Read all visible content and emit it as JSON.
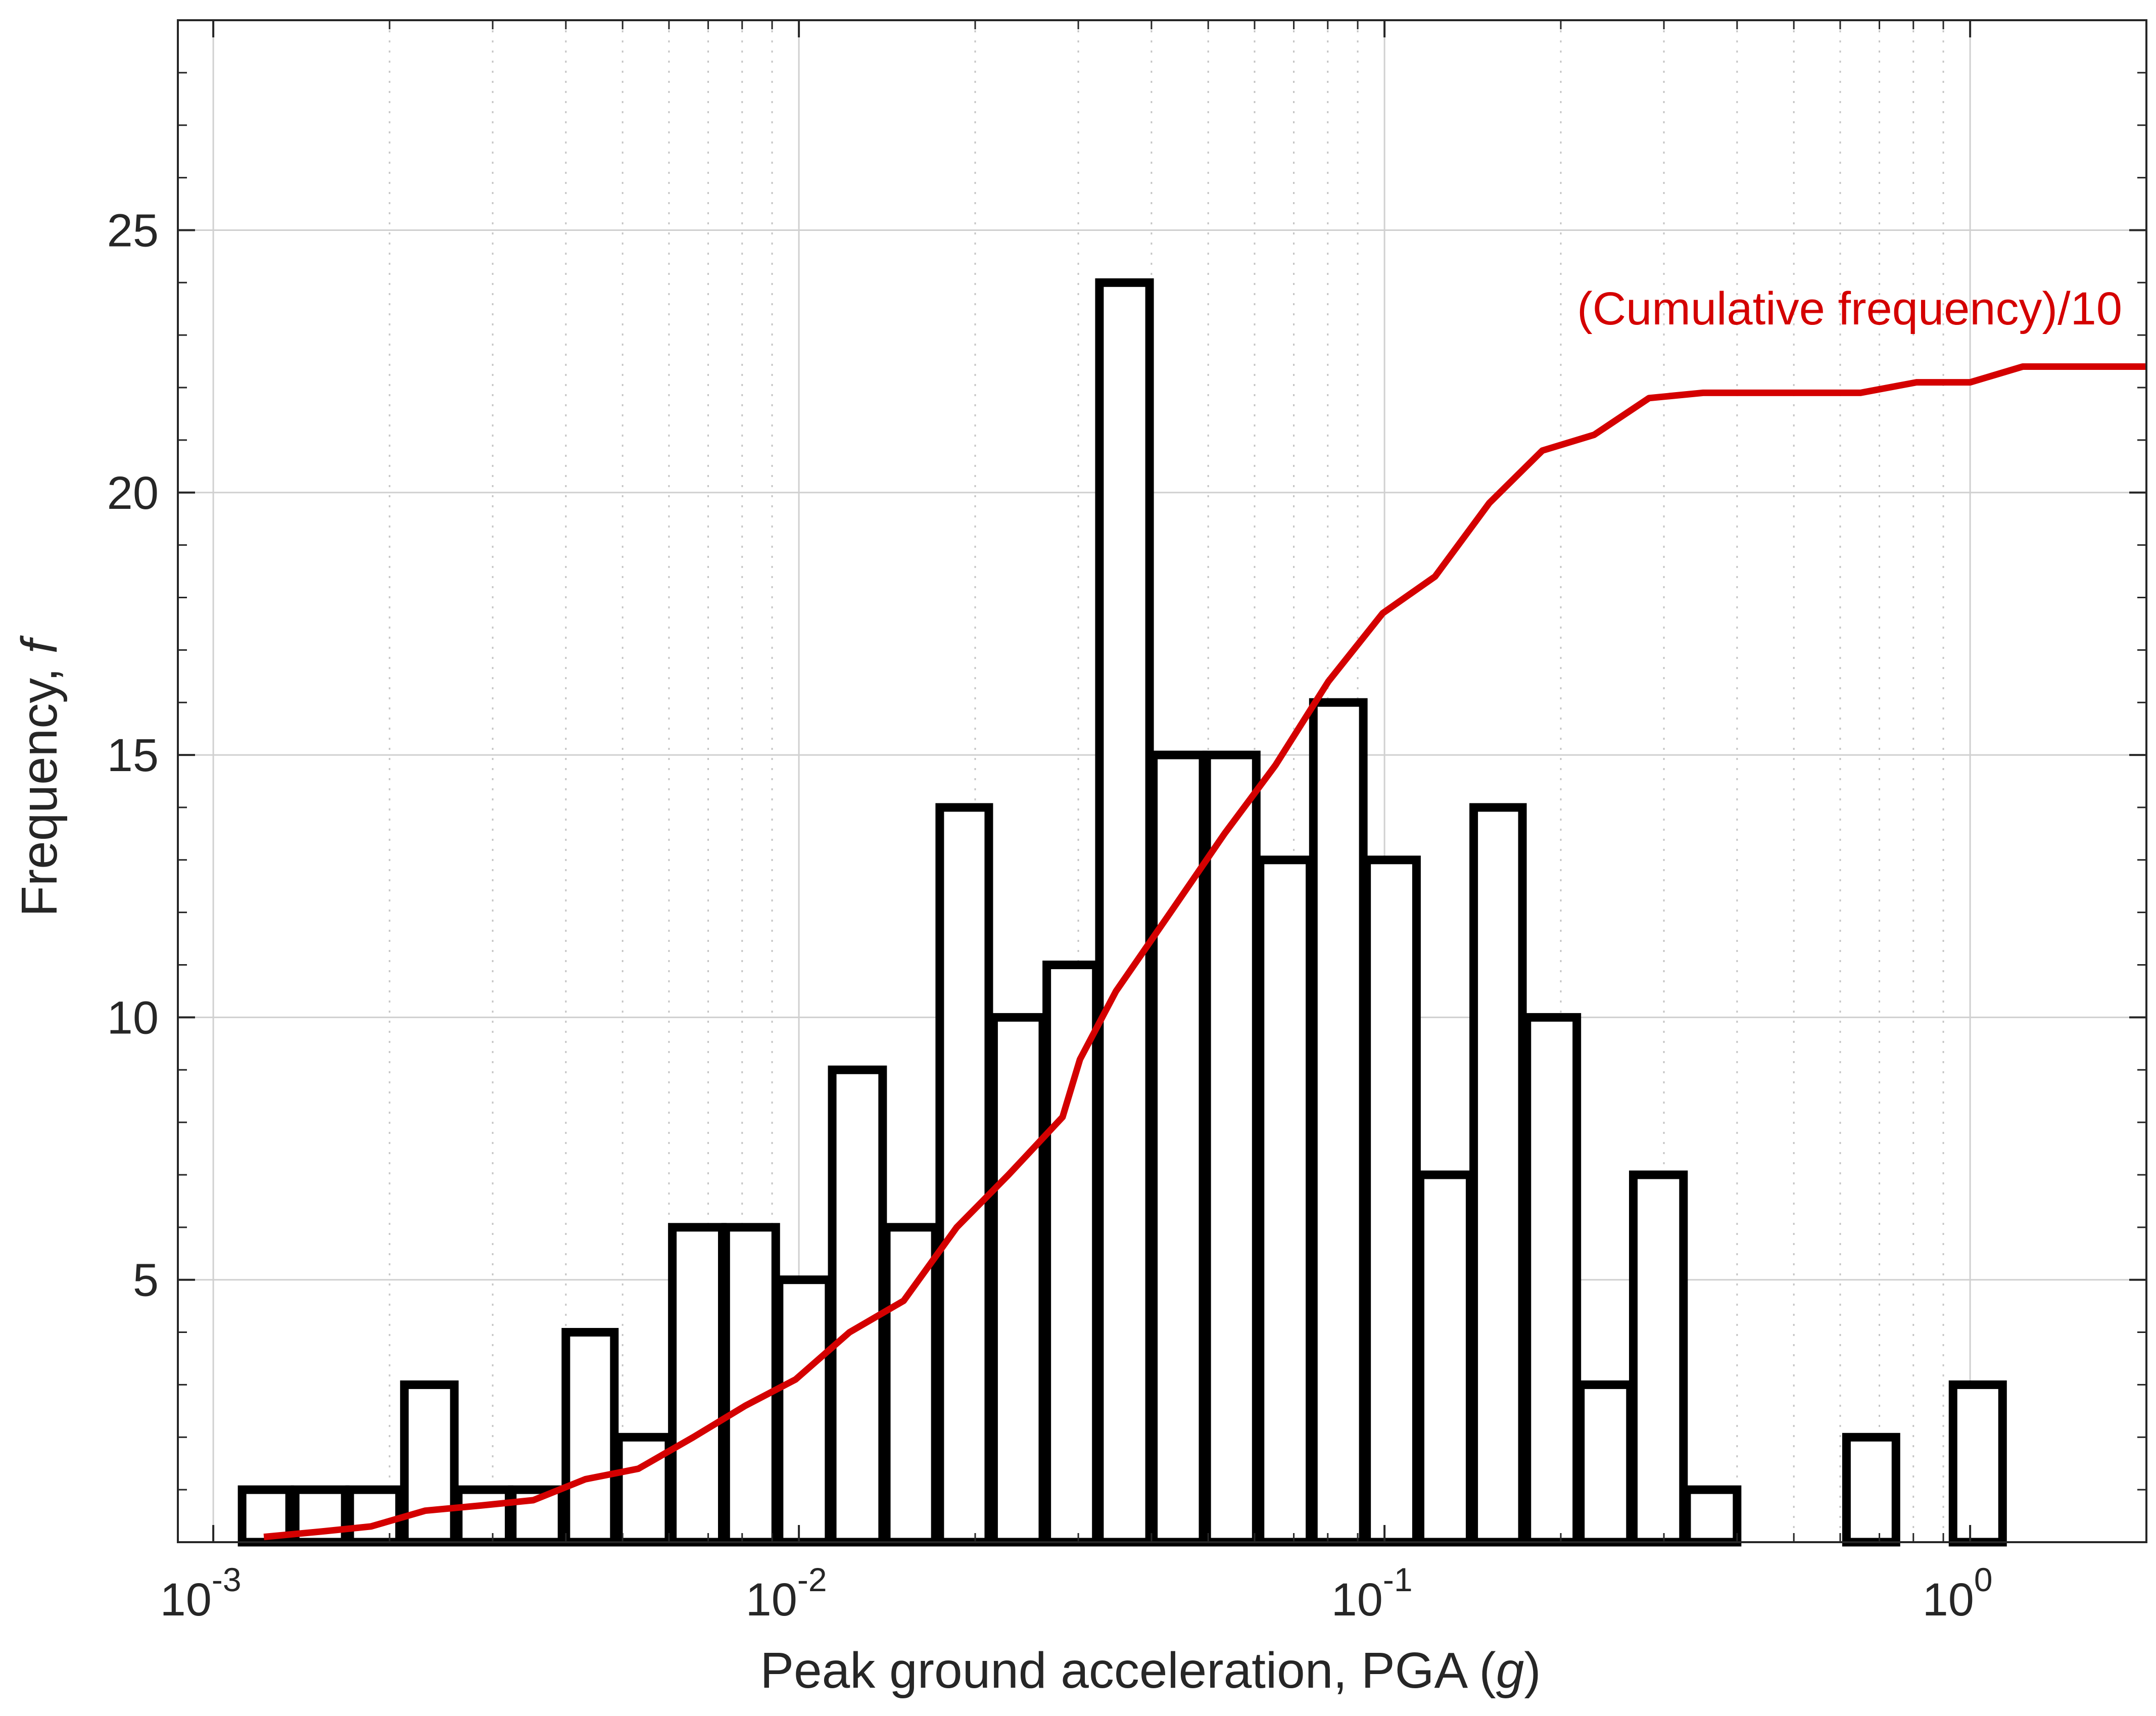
{
  "chart_data": {
    "type": "bar",
    "xscale": "log",
    "xlim": [
      0.00087,
      2.0
    ],
    "ylim": [
      0,
      29
    ],
    "xlabel": {
      "prefix": "Peak ground acceleration, PGA (",
      "var": "g",
      "suffix": ")"
    },
    "ylabel": {
      "prefix": "Frequency, ",
      "var": "f"
    },
    "grid": true,
    "x_ticks": [
      {
        "base": "10",
        "exp": "-3",
        "value": 0.001
      },
      {
        "base": "10",
        "exp": "-2",
        "value": 0.01
      },
      {
        "base": "10",
        "exp": "-1",
        "value": 0.1
      },
      {
        "base": "10",
        "exp": "0",
        "value": 1
      }
    ],
    "y_ticks": [
      {
        "label": "5",
        "value": 5
      },
      {
        "label": "10",
        "value": 10
      },
      {
        "label": "15",
        "value": 15
      },
      {
        "label": "20",
        "value": 20
      },
      {
        "label": "25",
        "value": 25
      }
    ],
    "bars": [
      {
        "x_start": 0.00112,
        "x_end": 0.00135,
        "count": 1
      },
      {
        "x_start": 0.00138,
        "x_end": 0.00168,
        "count": 1
      },
      {
        "x_start": 0.00171,
        "x_end": 0.00208,
        "count": 1
      },
      {
        "x_start": 0.00212,
        "x_end": 0.00258,
        "count": 3
      },
      {
        "x_start": 0.00262,
        "x_end": 0.0032,
        "count": 1
      },
      {
        "x_start": 0.00324,
        "x_end": 0.00394,
        "count": 1
      },
      {
        "x_start": 0.004,
        "x_end": 0.00484,
        "count": 4
      },
      {
        "x_start": 0.00492,
        "x_end": 0.006,
        "count": 2
      },
      {
        "x_start": 0.00608,
        "x_end": 0.0074,
        "count": 6
      },
      {
        "x_start": 0.0075,
        "x_end": 0.00913,
        "count": 6
      },
      {
        "x_start": 0.00925,
        "x_end": 0.01126,
        "count": 5
      },
      {
        "x_start": 0.0114,
        "x_end": 0.0139,
        "count": 9
      },
      {
        "x_start": 0.0141,
        "x_end": 0.0171,
        "count": 6
      },
      {
        "x_start": 0.0174,
        "x_end": 0.0211,
        "count": 14
      },
      {
        "x_start": 0.0215,
        "x_end": 0.0261,
        "count": 10
      },
      {
        "x_start": 0.0265,
        "x_end": 0.0322,
        "count": 11
      },
      {
        "x_start": 0.0326,
        "x_end": 0.0397,
        "count": 24
      },
      {
        "x_start": 0.0403,
        "x_end": 0.049,
        "count": 15
      },
      {
        "x_start": 0.0497,
        "x_end": 0.0604,
        "count": 15
      },
      {
        "x_start": 0.0613,
        "x_end": 0.0746,
        "count": 13
      },
      {
        "x_start": 0.0756,
        "x_end": 0.092,
        "count": 16
      },
      {
        "x_start": 0.0932,
        "x_end": 0.1134,
        "count": 13
      },
      {
        "x_start": 0.115,
        "x_end": 0.14,
        "count": 7
      },
      {
        "x_start": 0.142,
        "x_end": 0.172,
        "count": 14
      },
      {
        "x_start": 0.175,
        "x_end": 0.213,
        "count": 10
      },
      {
        "x_start": 0.216,
        "x_end": 0.263,
        "count": 3
      },
      {
        "x_start": 0.266,
        "x_end": 0.324,
        "count": 7
      },
      {
        "x_start": 0.328,
        "x_end": 0.4,
        "count": 1
      },
      {
        "x_start": 0.615,
        "x_end": 0.747,
        "count": 2
      },
      {
        "x_start": 0.935,
        "x_end": 1.136,
        "count": 3
      }
    ],
    "series": [
      {
        "name": "(Cumulative frequency)/10",
        "color": "#d40000",
        "x": [
          0.00122,
          0.00152,
          0.00186,
          0.0023,
          0.00287,
          0.00352,
          0.00432,
          0.00532,
          0.0066,
          0.0081,
          0.00987,
          0.0122,
          0.0151,
          0.0186,
          0.0228,
          0.0282,
          0.0302,
          0.0348,
          0.0431,
          0.0533,
          0.0651,
          0.0802,
          0.0993,
          0.122,
          0.151,
          0.186,
          0.228,
          0.283,
          0.35,
          0.43,
          0.533,
          0.65,
          0.81,
          1.0,
          1.23,
          2.0
        ],
        "y": [
          0.1,
          0.2,
          0.3,
          0.6,
          0.7,
          0.8,
          1.2,
          1.4,
          2.0,
          2.6,
          3.1,
          4.0,
          4.6,
          6.0,
          7.0,
          8.1,
          9.2,
          10.5,
          12.0,
          13.5,
          14.8,
          16.4,
          17.7,
          18.4,
          19.8,
          20.8,
          21.1,
          21.8,
          21.9,
          21.9,
          21.9,
          21.9,
          22.1,
          22.1,
          22.4,
          22.4
        ]
      }
    ],
    "annotation": "(Cumulative frequency)/10",
    "colors": {
      "bar_fill": "#ffffff",
      "bar_stroke": "#000000",
      "cumulative_line": "#d40000",
      "grid": "#d0d0d0",
      "axis": "#262626"
    }
  }
}
